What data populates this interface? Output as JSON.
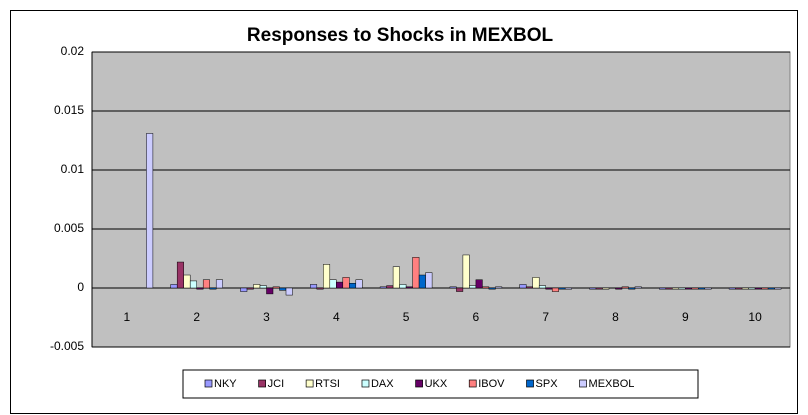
{
  "chart_data": {
    "type": "bar",
    "title": "Responses to Shocks in MEXBOL",
    "categories": [
      "1",
      "2",
      "3",
      "4",
      "5",
      "6",
      "7",
      "8",
      "9",
      "10"
    ],
    "series": [
      {
        "name": "NKY",
        "color": "#9999ff",
        "values": [
          0,
          0.0003,
          -0.0003,
          0.0003,
          0.0001,
          0.0001,
          0.0003,
          -0.0001,
          -0.0001,
          -0.0001
        ]
      },
      {
        "name": "JCI",
        "color": "#993366",
        "values": [
          0,
          0.0022,
          -0.0001,
          -0.0001,
          0.0002,
          -0.0003,
          0.0001,
          -0.0001,
          -0.0001,
          -0.0001
        ]
      },
      {
        "name": "RTSI",
        "color": "#ffffcc",
        "values": [
          0,
          0.0011,
          0.0003,
          0.002,
          0.0018,
          0.0028,
          0.0009,
          -0.0001,
          -0.0001,
          -0.0001
        ]
      },
      {
        "name": "DAX",
        "color": "#ccffff",
        "values": [
          0,
          0.0006,
          0.0002,
          0.0007,
          0.0003,
          0.0002,
          0.0002,
          0,
          -0.0001,
          -0.0001
        ]
      },
      {
        "name": "UKX",
        "color": "#660066",
        "values": [
          0,
          -0.0001,
          -0.0005,
          0.0005,
          0.0001,
          0.0007,
          -0.0001,
          -0.0001,
          -0.0001,
          -0.0001
        ]
      },
      {
        "name": "IBOV",
        "color": "#ff8080",
        "values": [
          0,
          0.0007,
          0.0001,
          0.0009,
          0.0026,
          0.0001,
          -0.0003,
          0.0001,
          -0.0001,
          -0.0001
        ]
      },
      {
        "name": "SPX",
        "color": "#0066cc",
        "values": [
          0,
          -0.0001,
          -0.0002,
          0.0004,
          0.0011,
          -0.0001,
          -0.0001,
          -0.0001,
          -0.0001,
          -0.0001
        ]
      },
      {
        "name": "MEXBOL",
        "color": "#ccccff",
        "values": [
          0.0131,
          0.0007,
          -0.0006,
          0.0007,
          0.0013,
          0.0001,
          -0.0001,
          0.0001,
          -0.0001,
          -0.0001
        ]
      }
    ],
    "ylim": [
      -0.005,
      0.02
    ],
    "yticks": [
      -0.005,
      0,
      0.005,
      0.01,
      0.015,
      0.02
    ],
    "grid": true,
    "legend": "bottom",
    "plot_background": "#c0c0c0"
  }
}
